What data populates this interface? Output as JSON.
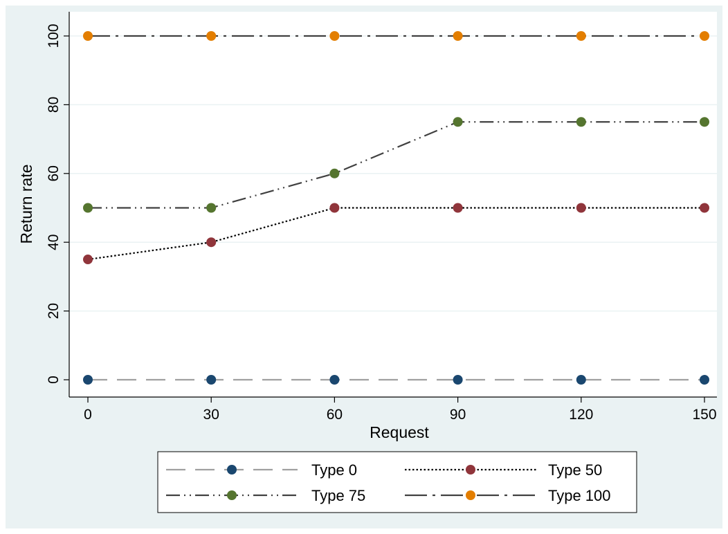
{
  "chart_data": {
    "type": "line",
    "title": "",
    "xlabel": "Request",
    "ylabel": "Return rate",
    "x": [
      0,
      30,
      60,
      90,
      120,
      150
    ],
    "xlim": [
      0,
      150
    ],
    "ylim": [
      0,
      100
    ],
    "xticks": [
      0,
      30,
      60,
      90,
      120,
      150
    ],
    "yticks": [
      0,
      20,
      40,
      60,
      80,
      100
    ],
    "grid": true,
    "legend_position": "bottom",
    "series": [
      {
        "name": "Type 0",
        "values": [
          0,
          0,
          0,
          0,
          0,
          0
        ],
        "color": "#1a476f",
        "line_color": "#a0a0a0",
        "dash": "long-dash"
      },
      {
        "name": "Type 50",
        "values": [
          35,
          40,
          50,
          50,
          50,
          50
        ],
        "color": "#90353b",
        "line_color": "#000000",
        "dash": "dot"
      },
      {
        "name": "Type 75",
        "values": [
          50,
          50,
          60,
          75,
          75,
          75
        ],
        "color": "#55752f",
        "line_color": "#404040",
        "dash": "dash-dot-dot"
      },
      {
        "name": "Type 100",
        "values": [
          100,
          100,
          100,
          100,
          100,
          100
        ],
        "color": "#e37e00",
        "line_color": "#404040",
        "dash": "long-dash-dot"
      }
    ]
  },
  "style": {
    "outer_background": "#eaf2f3",
    "plot_background": "#ffffff",
    "grid_color": "#eaf2f3"
  }
}
